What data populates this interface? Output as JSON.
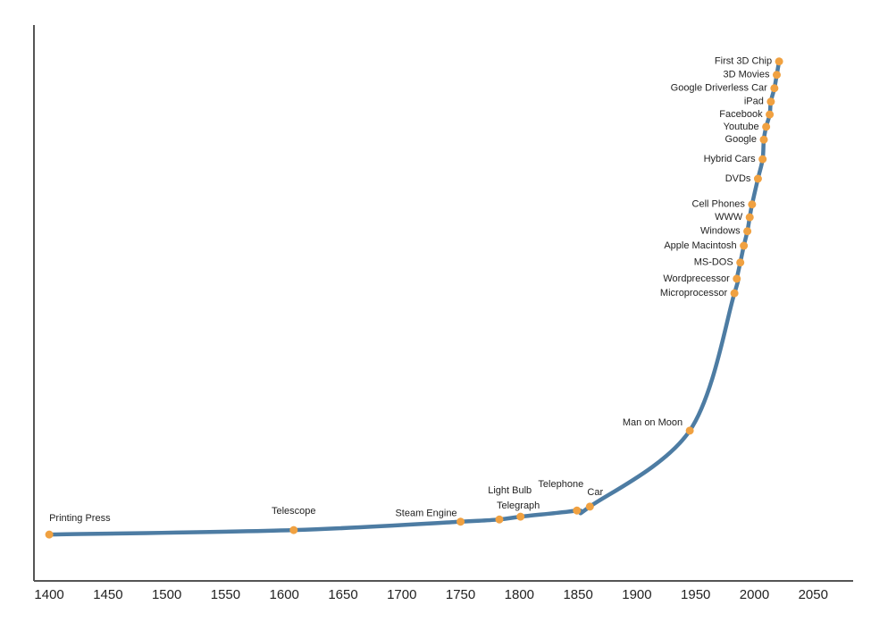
{
  "chart_data": {
    "type": "line",
    "x": [
      1400,
      1608,
      1750,
      1783,
      1801,
      1849,
      1860,
      1945,
      1983,
      1985,
      1988,
      1991,
      1994,
      1996,
      1998,
      2003,
      2007,
      2008,
      2010,
      2013,
      2014,
      2017,
      2019,
      2021
    ],
    "values": [
      8.3,
      9.1,
      10.6,
      11.0,
      11.5,
      12.6,
      13.3,
      26.9,
      51.5,
      54.1,
      57.0,
      60.0,
      62.6,
      65.1,
      67.4,
      72.0,
      75.5,
      79.0,
      81.3,
      83.5,
      85.8,
      88.2,
      90.6,
      93.0
    ],
    "labels": [
      "Printing Press",
      "Telescope",
      "Steam Engine",
      "Telegraph",
      "Light Bulb",
      "Telephone",
      "Car",
      "Man on Moon",
      "Microprocessor",
      "Wordprecessor",
      "MS-DOS",
      "Apple Macintosh",
      "Windows",
      "WWW",
      "Cell Phones",
      "DVDs",
      "Hybrid Cars",
      "Google",
      "Youtube",
      "Facebook",
      "iPad",
      "Google Driverless Car",
      "3D Movies",
      "First 3D Chip"
    ],
    "color": "#4d7ca3",
    "point_color": "#f0a141",
    "xlim": [
      1387,
      2084
    ],
    "xticks": [
      1400,
      1450,
      1500,
      1550,
      1600,
      1650,
      1700,
      1750,
      1800,
      1850,
      1900,
      1950,
      2000,
      2050
    ],
    "ylim": [
      0,
      100
    ]
  }
}
